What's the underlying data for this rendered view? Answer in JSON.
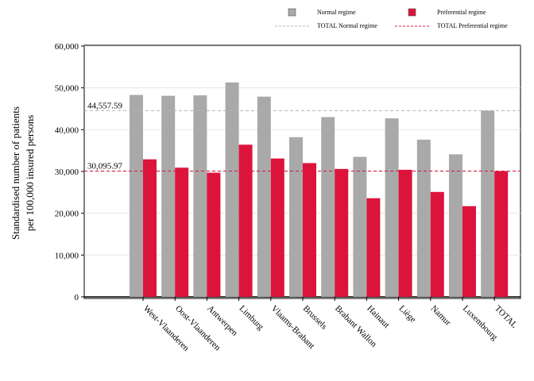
{
  "chart_data": {
    "type": "bar",
    "title": "",
    "xlabel": "",
    "ylabel_lines": [
      "Standardised number of patients",
      "per 100,000 insured persons"
    ],
    "ylim": [
      0,
      60000
    ],
    "yticks": [
      0,
      10000,
      20000,
      30000,
      40000,
      50000,
      60000
    ],
    "ytick_labels": [
      "0",
      "10,000",
      "20,000",
      "30,000",
      "40,000",
      "50,000",
      "60,000"
    ],
    "grid": true,
    "legend_position": "top",
    "categories": [
      "West-Vlaanderen",
      "Oost-Vlaanderen",
      "Antwerpen",
      "Limburg",
      "Vlaams-Brabant",
      "Brussels",
      "Brabant Wallon",
      "Hainaut",
      "Liège",
      "Namur",
      "Luxembourg",
      "TOTAL"
    ],
    "series": [
      {
        "name": "Normal regime",
        "color": "#a9a9a9",
        "values": [
          48300,
          48100,
          48200,
          51300,
          47900,
          38200,
          43000,
          33500,
          42700,
          37600,
          34100,
          44557.59
        ]
      },
      {
        "name": "Preferential regime",
        "color": "#dc143c",
        "values": [
          32900,
          30900,
          29700,
          36400,
          33100,
          32000,
          30600,
          23600,
          30400,
          25100,
          21700,
          30095.97
        ]
      }
    ],
    "reference_lines": [
      {
        "name": "TOTAL Normal regime",
        "value": 44557.59,
        "label": "44,557.59",
        "color": "#b4b4b4"
      },
      {
        "name": "TOTAL Preferential regime",
        "value": 30095.97,
        "label": "30,095.97",
        "color": "#dc143c"
      }
    ]
  }
}
